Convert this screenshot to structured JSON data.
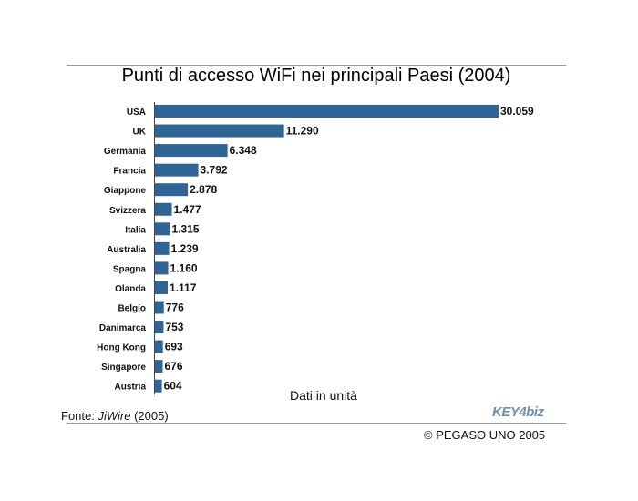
{
  "chart_data": {
    "type": "bar",
    "orientation": "horizontal",
    "title": "Punti di accesso WiFi nei principali Paesi (2004)",
    "categories": [
      "USA",
      "UK",
      "Germania",
      "Francia",
      "Giappone",
      "Svizzera",
      "Italia",
      "Australia",
      "Spagna",
      "Olanda",
      "Belgio",
      "Danimarca",
      "Hong Kong",
      "Singapore",
      "Austria"
    ],
    "values": [
      30059,
      11290,
      6348,
      3792,
      2878,
      1477,
      1315,
      1239,
      1160,
      1117,
      776,
      753,
      693,
      676,
      604
    ],
    "value_labels": [
      "30.059",
      "11.290",
      "6.348",
      "3.792",
      "2.878",
      "1.477",
      "1.315",
      "1.239",
      "1.160",
      "1.117",
      "776",
      "753",
      "693",
      "676",
      "604"
    ],
    "xlim": [
      0,
      30059
    ],
    "grid": false,
    "bar_color": "#2f6496",
    "note": "Dati in unità"
  },
  "source": {
    "prefix": "Fonte: ",
    "name": "JiWire",
    "suffix": " (2005)"
  },
  "logo": "KEY4biz",
  "copyright": "© PEGASO UNO 2005"
}
